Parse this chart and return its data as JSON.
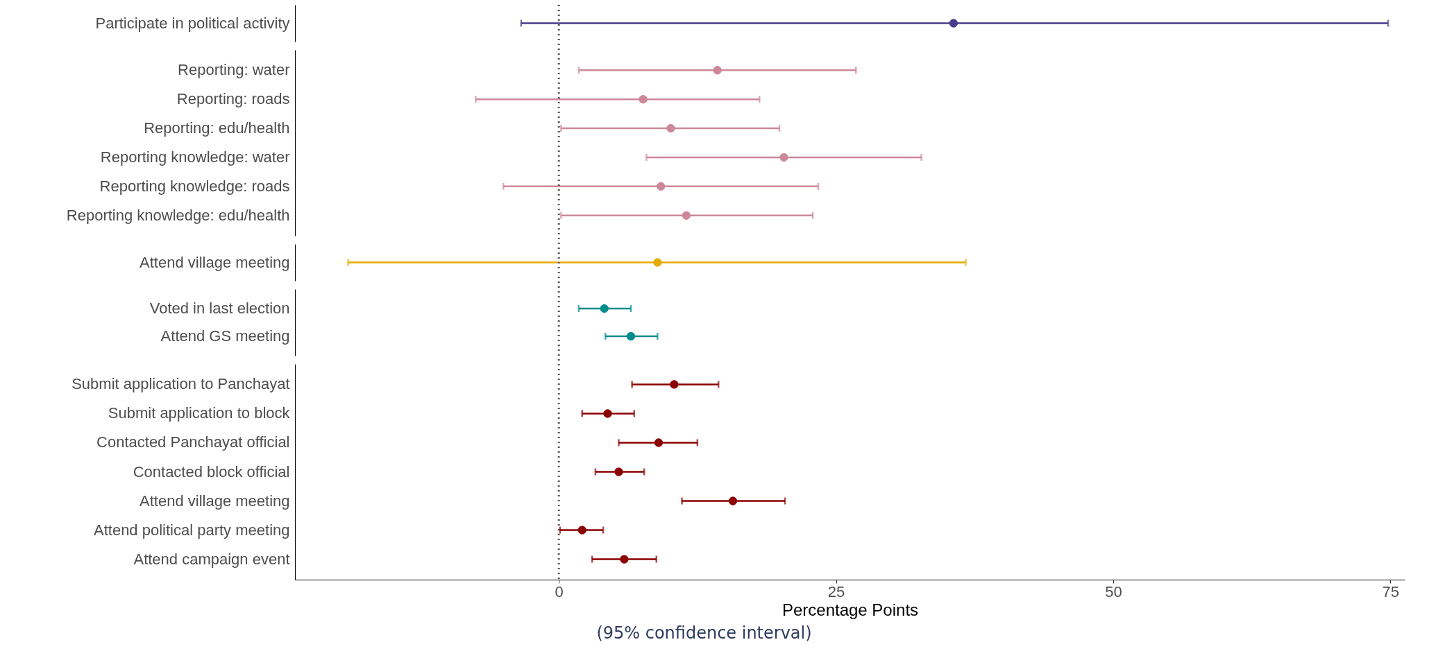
{
  "chart_data": {
    "type": "scatter",
    "orientation": "horizontal",
    "categories": [
      "Participate in political activity",
      "Reporting: water",
      "Reporting: roads",
      "Reporting: edu/health",
      "Reporting knowledge: water",
      "Reporting knowledge: roads",
      "Reporting knowledge: edu/health",
      "Attend village meeting",
      "Voted in last election",
      "Attend GS meeting",
      "Submit application to Panchayat",
      "Submit application to block",
      "Contacted Panchayat official",
      "Contacted block official",
      "Attend village meeting",
      "Attend political party meeting",
      "Attend campaign event"
    ],
    "series": [
      {
        "color": "#483d8b",
        "values": [
          35.6,
          null,
          null,
          null,
          null,
          null,
          null,
          null,
          null,
          null,
          null,
          null,
          null,
          null,
          null,
          null,
          null
        ],
        "errors": [
          [
            -3.4,
            74.8
          ],
          null,
          null,
          null,
          null,
          null,
          null,
          null,
          null,
          null,
          null,
          null,
          null,
          null,
          null,
          null,
          null
        ]
      },
      {
        "color": "#cc8899",
        "values": [
          null,
          14.3,
          7.6,
          10.1,
          20.3,
          9.2,
          11.5,
          null,
          null,
          null,
          null,
          null,
          null,
          null,
          null,
          null,
          null
        ],
        "errors": [
          null,
          [
            1.8,
            26.8
          ],
          [
            -7.5,
            18.1
          ],
          [
            0.2,
            19.9
          ],
          [
            7.9,
            32.7
          ],
          [
            -5.0,
            23.4
          ],
          [
            0.2,
            22.9
          ],
          null,
          null,
          null,
          null,
          null,
          null,
          null,
          null,
          null,
          null
        ]
      },
      {
        "color": "#e6ab02",
        "values": [
          null,
          null,
          null,
          null,
          null,
          null,
          null,
          8.9,
          null,
          null,
          null,
          null,
          null,
          null,
          null,
          null,
          null
        ],
        "errors": [
          null,
          null,
          null,
          null,
          null,
          null,
          null,
          [
            -19.0,
            36.7
          ],
          null,
          null,
          null,
          null,
          null,
          null,
          null,
          null,
          null
        ]
      },
      {
        "color": "#008b8b",
        "values": [
          null,
          null,
          null,
          null,
          null,
          null,
          null,
          null,
          4.1,
          6.5,
          null,
          null,
          null,
          null,
          null,
          null,
          null
        ],
        "errors": [
          null,
          null,
          null,
          null,
          null,
          null,
          null,
          null,
          [
            1.8,
            6.5
          ],
          [
            4.2,
            8.9
          ],
          null,
          null,
          null,
          null,
          null,
          null,
          null
        ]
      },
      {
        "color": "#8b0000",
        "values": [
          null,
          null,
          null,
          null,
          null,
          null,
          null,
          null,
          null,
          null,
          10.4,
          4.4,
          9.0,
          5.4,
          15.7,
          2.1,
          5.9
        ],
        "errors": [
          null,
          null,
          null,
          null,
          null,
          null,
          null,
          null,
          null,
          null,
          [
            6.6,
            14.4
          ],
          [
            2.1,
            6.8
          ],
          [
            5.4,
            12.5
          ],
          [
            3.3,
            7.7
          ],
          [
            11.1,
            20.4
          ],
          [
            0.1,
            4.0
          ],
          [
            3.0,
            8.8
          ]
        ]
      }
    ],
    "xlim": [
      -23.8,
      76.3
    ],
    "xticks": [
      0,
      25,
      50,
      75
    ],
    "xlabel": "Percentage Points",
    "annotations": [
      "(95% confidence interval)"
    ],
    "ref_lines": [
      {
        "axis": "x",
        "value": 0,
        "line_style": "dotted",
        "color": "#555555"
      }
    ],
    "marker": "circle"
  }
}
